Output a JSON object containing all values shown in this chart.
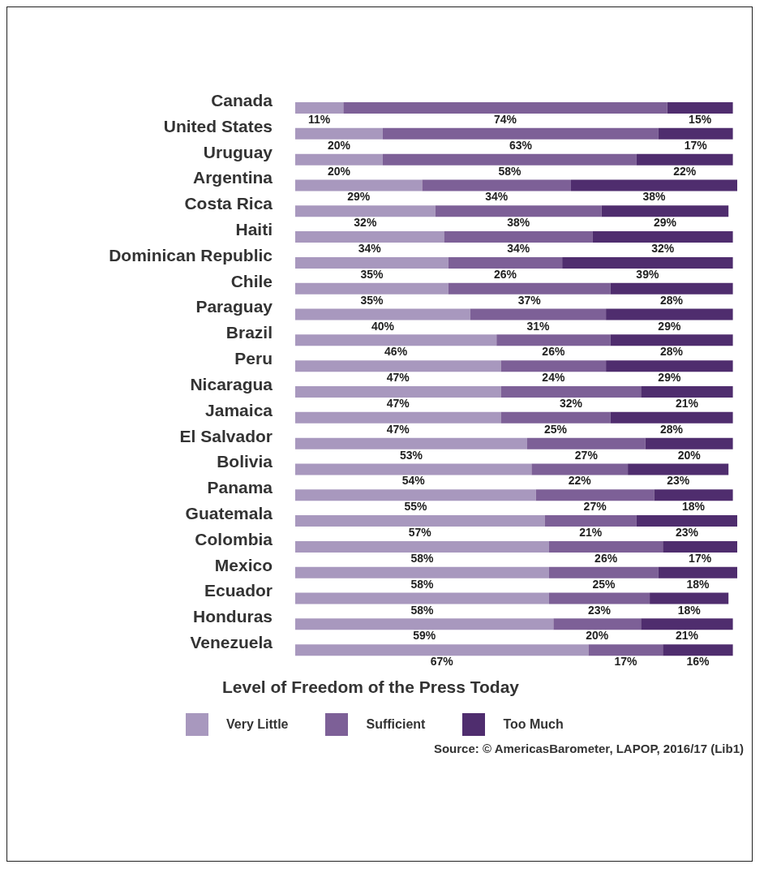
{
  "chart_data": {
    "type": "bar",
    "orientation": "horizontal",
    "stacked": true,
    "legend": "bottom",
    "legend_title": "Level of Freedom of the Press Today",
    "annotations": [
      "Source: © AmericasBarometer, LAPOP, 2016/17 (Lib1)"
    ],
    "categories": [
      "Canada",
      "United States",
      "Uruguay",
      "Argentina",
      "Costa Rica",
      "Haiti",
      "Dominican Republic",
      "Chile",
      "Paraguay",
      "Brazil",
      "Peru",
      "Nicaragua",
      "Jamaica",
      "El Salvador",
      "Bolivia",
      "Panama",
      "Guatemala",
      "Colombia",
      "Mexico",
      "Ecuador",
      "Honduras",
      "Venezuela"
    ],
    "series": [
      {
        "name": "Very Little",
        "color": "#a898be",
        "values": [
          11,
          20,
          20,
          29,
          32,
          34,
          35,
          35,
          40,
          46,
          47,
          47,
          47,
          53,
          54,
          55,
          57,
          58,
          58,
          58,
          59,
          67
        ],
        "value_labels": [
          "11%",
          "20%",
          "20%",
          "29%",
          "32%",
          "34%",
          "35%",
          "35%",
          "40%",
          "46%",
          "47%",
          "47%",
          "47%",
          "53%",
          "54%",
          "55%",
          "57%",
          "58%",
          "58%",
          "58%",
          "59%",
          "67%"
        ]
      },
      {
        "name": "Sufficient",
        "color": "#7d6097",
        "values": [
          74,
          63,
          58,
          34,
          38,
          34,
          26,
          37,
          31,
          26,
          24,
          32,
          25,
          27,
          22,
          27,
          21,
          26,
          25,
          23,
          20,
          17
        ],
        "value_labels": [
          "74%",
          "63%",
          "58%",
          "34%",
          "38%",
          "34%",
          "26%",
          "37%",
          "31%",
          "26%",
          "24%",
          "32%",
          "25%",
          "27%",
          "22%",
          "27%",
          "21%",
          "26%",
          "25%",
          "23%",
          "20%",
          "17%"
        ]
      },
      {
        "name": "Too Much",
        "color": "#4f2d6e",
        "values": [
          15,
          17,
          22,
          38,
          29,
          32,
          39,
          28,
          29,
          28,
          29,
          21,
          28,
          20,
          23,
          18,
          23,
          17,
          18,
          18,
          21,
          16
        ],
        "value_labels": [
          "15%",
          "17%",
          "22%",
          "38%",
          "29%",
          "32%",
          "39%",
          "28%",
          "29%",
          "28%",
          "29%",
          "21%",
          "28%",
          "20%",
          "23%",
          "18%",
          "23%",
          "17%",
          "18%",
          "18%",
          "21%",
          "16%"
        ]
      }
    ]
  }
}
